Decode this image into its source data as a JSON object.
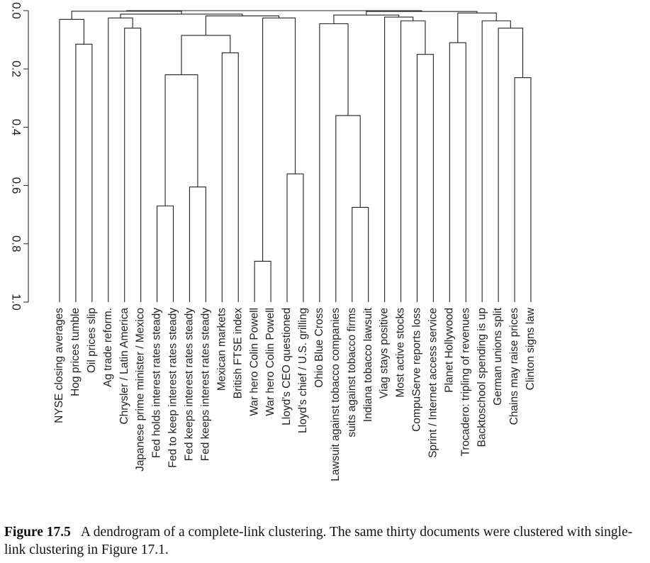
{
  "chart_data": {
    "type": "dendrogram",
    "orientation": "vertical, inverted axis (0.0 at top, 1.0 at bottom)",
    "linkage": "complete",
    "ylim": [
      0.0,
      1.0
    ],
    "ytick_labels": [
      "0.0",
      "0.2",
      "0.4",
      "0.6",
      "0.8",
      "1.0"
    ],
    "grid": false,
    "leaves": [
      "NYSE closing averages",
      "Hog prices tumble",
      "Oil prices slip",
      "Ag trade reform.",
      "Chrysler / Latin America",
      "Japanese prime minister / Mexico",
      "Fed holds interest rates steady",
      "Fed to keep interest rates steady",
      "Fed keeps interest rates steady",
      "Fed keeps interest rates steady",
      "Mexican markets",
      "British FTSE index",
      "War hero Colin Powell",
      "War hero Colin Powell",
      "Lloyd's CEO questioned",
      "Lloyd's chief / U.S. grilling",
      "Ohio Blue Cross",
      "Lawsuit against tobacco companies",
      "suits against tobacco firms",
      "Indiana tobacco lawsuit",
      "Viag stays positive",
      "Most active stocks",
      "CompuServe reports loss",
      "Sprint / Internet access service",
      "Planet Hollywood",
      "Trocadero: tripling of revenues",
      "Backtoschool spending is up",
      "German unions split",
      "Chains may raise prices",
      "Clinton signs law"
    ],
    "merges": [
      {
        "id": "m1",
        "left": "L12",
        "right": "L13",
        "height": 0.86
      },
      {
        "id": "m2",
        "left": "L18",
        "right": "L19",
        "height": 0.675
      },
      {
        "id": "m3",
        "left": "L6",
        "right": "L7",
        "height": 0.67
      },
      {
        "id": "m4",
        "left": "L8",
        "right": "L9",
        "height": 0.605
      },
      {
        "id": "m5",
        "left": "L14",
        "right": "L15",
        "height": 0.56
      },
      {
        "id": "m6",
        "left": "L17",
        "right": "m2",
        "height": 0.36
      },
      {
        "id": "m7",
        "left": "L29",
        "right": "L28",
        "height": 0.23
      },
      {
        "id": "m8",
        "left": "m3",
        "right": "m4",
        "height": 0.22
      },
      {
        "id": "m9",
        "left": "L22",
        "right": "L23",
        "height": 0.15
      },
      {
        "id": "m10",
        "left": "L10",
        "right": "L11",
        "height": 0.145
      },
      {
        "id": "m11",
        "left": "L1",
        "right": "L2",
        "height": 0.115
      },
      {
        "id": "m12",
        "left": "L24",
        "right": "L25",
        "height": 0.11
      },
      {
        "id": "m13",
        "left": "m8",
        "right": "m10",
        "height": 0.085
      },
      {
        "id": "m14",
        "left": "L4",
        "right": "L5",
        "height": 0.06
      },
      {
        "id": "m15",
        "left": "L27",
        "right": "m7",
        "height": 0.06
      },
      {
        "id": "m16",
        "left": "L16",
        "right": "m6",
        "height": 0.045
      },
      {
        "id": "m17",
        "left": "L21",
        "right": "m9",
        "height": 0.035
      },
      {
        "id": "m18",
        "left": "L26",
        "right": "m15",
        "height": 0.035
      },
      {
        "id": "m19",
        "left": "L0",
        "right": "m11",
        "height": 0.03
      },
      {
        "id": "m20",
        "left": "L3",
        "right": "m14",
        "height": 0.025
      },
      {
        "id": "m21",
        "left": "m1",
        "right": "m5",
        "height": 0.025
      },
      {
        "id": "m22",
        "left": "L20",
        "right": "m17",
        "height": 0.022
      },
      {
        "id": "m23",
        "left": "m13",
        "right": "m21",
        "height": 0.018
      },
      {
        "id": "m24",
        "left": "m16",
        "right": "m22",
        "height": 0.015
      },
      {
        "id": "m25",
        "left": "m20",
        "right": "m23",
        "height": 0.012
      },
      {
        "id": "m26",
        "left": "m12",
        "right": "m18",
        "height": 0.008
      },
      {
        "id": "m27",
        "left": "m24",
        "right": "m26",
        "height": 0.003
      },
      {
        "id": "m28",
        "left": "m19",
        "right": "m25",
        "height": 0.002
      },
      {
        "id": "m29",
        "left": "m28",
        "right": "m27",
        "height": 0.0
      }
    ]
  },
  "caption": {
    "label": "Figure 17.5",
    "text": "A dendrogram of a complete-link clustering. The same thirty documents were clustered with single-link clustering in Figure 17.1."
  }
}
